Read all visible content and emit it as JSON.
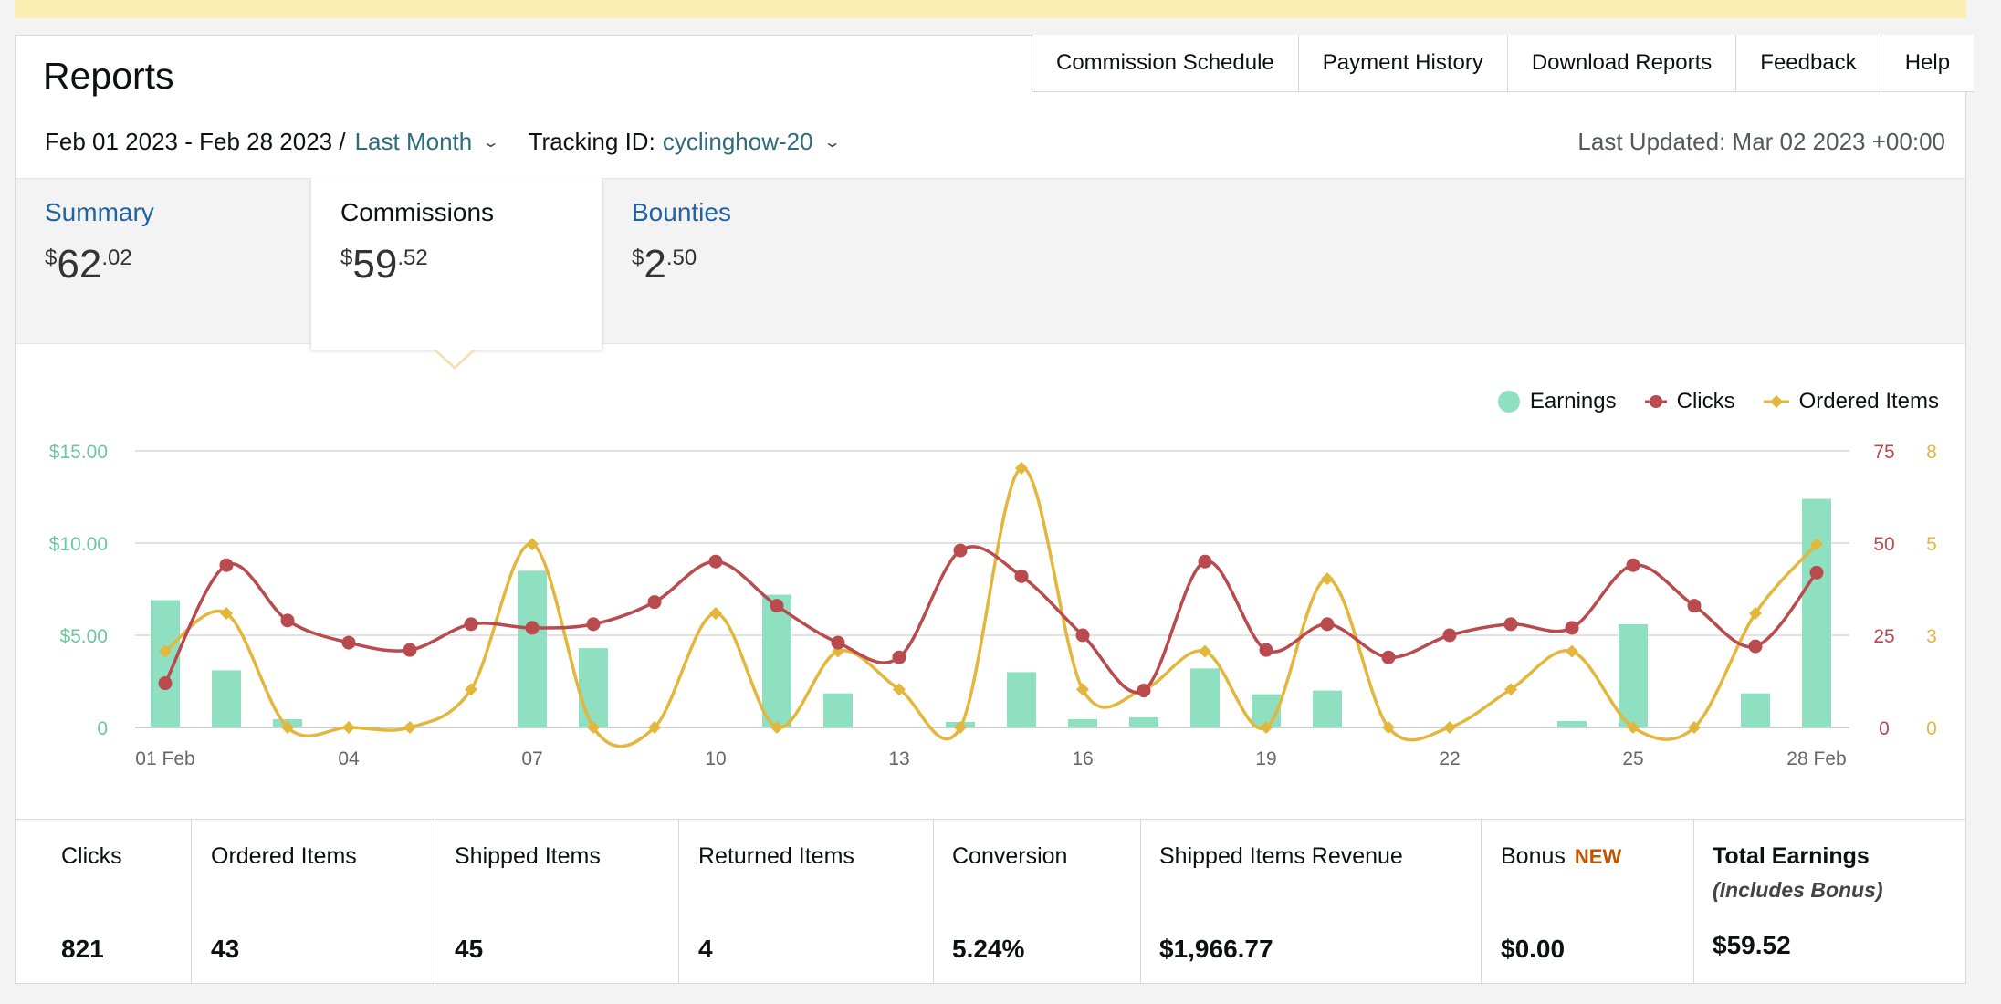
{
  "header": {
    "title": "Reports",
    "nav": [
      "Commission Schedule",
      "Payment History",
      "Download Reports",
      "Feedback",
      "Help"
    ],
    "date_range": "Feb 01 2023 - Feb 28 2023 /",
    "period_link": "Last Month",
    "tracking_label": "Tracking ID:",
    "tracking_id": "cyclinghow-20",
    "last_updated": "Last Updated: Mar 02 2023 +00:00"
  },
  "tabs": [
    {
      "label": "Summary",
      "currency": "$",
      "whole": "62",
      "cents": ".02"
    },
    {
      "label": "Commissions",
      "currency": "$",
      "whole": "59",
      "cents": ".52"
    },
    {
      "label": "Bounties",
      "currency": "$",
      "whole": "2",
      "cents": ".50"
    }
  ],
  "chart_data": {
    "type": "bar+line",
    "x_ticks": [
      "01 Feb",
      "04",
      "07",
      "10",
      "13",
      "16",
      "19",
      "22",
      "25",
      "28 Feb"
    ],
    "legend_placement": "top-right",
    "grid": true,
    "colors": {
      "earnings": "#8fe0c1",
      "clicks": "#b94a4d",
      "ordered_items": "#e3b63c"
    },
    "y_left": {
      "ticks": [
        "0",
        "$5.00",
        "$10.00",
        "$15.00"
      ],
      "ylim": [
        0,
        15
      ]
    },
    "y_right_clicks": {
      "ticks": [
        "0",
        "25",
        "50",
        "75"
      ],
      "ylim": [
        0,
        75
      ]
    },
    "y_right_items": {
      "ticks": [
        "0",
        "3",
        "5",
        "8"
      ],
      "ylim": [
        0,
        8
      ]
    },
    "series": [
      {
        "name": "Earnings",
        "axis": "left",
        "kind": "bar",
        "values": [
          6.9,
          3.1,
          0.45,
          0,
          0,
          0,
          8.5,
          4.3,
          0,
          0,
          7.2,
          1.85,
          0,
          0.3,
          3.0,
          0.45,
          0.55,
          3.2,
          1.8,
          2.0,
          0,
          0,
          0,
          0.35,
          5.6,
          0,
          1.85,
          12.4
        ]
      },
      {
        "name": "Clicks",
        "axis": "right1",
        "kind": "line",
        "values": [
          12,
          44,
          29,
          23,
          21,
          28,
          27,
          28,
          34,
          45,
          33,
          23,
          19,
          48,
          41,
          25,
          10,
          45,
          21,
          28,
          19,
          25,
          28,
          27,
          44,
          33,
          22,
          42
        ]
      },
      {
        "name": "Ordered Items",
        "axis": "right2",
        "kind": "line",
        "values": [
          2.2,
          3.3,
          0,
          0,
          0,
          1.1,
          5.3,
          0,
          0,
          3.3,
          0,
          2.2,
          1.1,
          0,
          7.5,
          1.1,
          1.1,
          2.2,
          0,
          4.3,
          0,
          0,
          1.1,
          2.2,
          0,
          0,
          3.3,
          5.3
        ]
      }
    ]
  },
  "stats": [
    {
      "label": "Clicks",
      "value": "821"
    },
    {
      "label": "Ordered Items",
      "value": "43"
    },
    {
      "label": "Shipped Items",
      "value": "45"
    },
    {
      "label": "Returned Items",
      "value": "4"
    },
    {
      "label": "Conversion",
      "value": "5.24%"
    },
    {
      "label": "Shipped Items Revenue",
      "value": "$1,966.77"
    },
    {
      "label": "Bonus",
      "badge": "NEW",
      "value": "$0.00"
    },
    {
      "label": "Total Earnings",
      "sub": "(Includes Bonus)",
      "value": "$59.52"
    }
  ]
}
